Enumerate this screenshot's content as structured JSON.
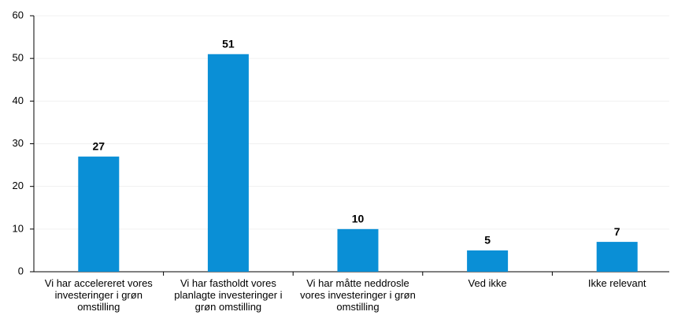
{
  "chart_data": {
    "type": "bar",
    "categories": [
      "Vi har accelereret vores investeringer i grøn omstilling",
      "Vi har fastholdt vores planlagte investeringer i grøn omstilling",
      "Vi har måtte neddrosle vores investeringer i grøn omstilling",
      "Ved ikke",
      "Ikke relevant"
    ],
    "values": [
      27,
      51,
      10,
      5,
      7
    ],
    "color": "#0a8fd6",
    "ylim": [
      0,
      60
    ],
    "yticks": [
      0,
      10,
      20,
      30,
      40,
      50,
      60
    ],
    "grid": true
  }
}
